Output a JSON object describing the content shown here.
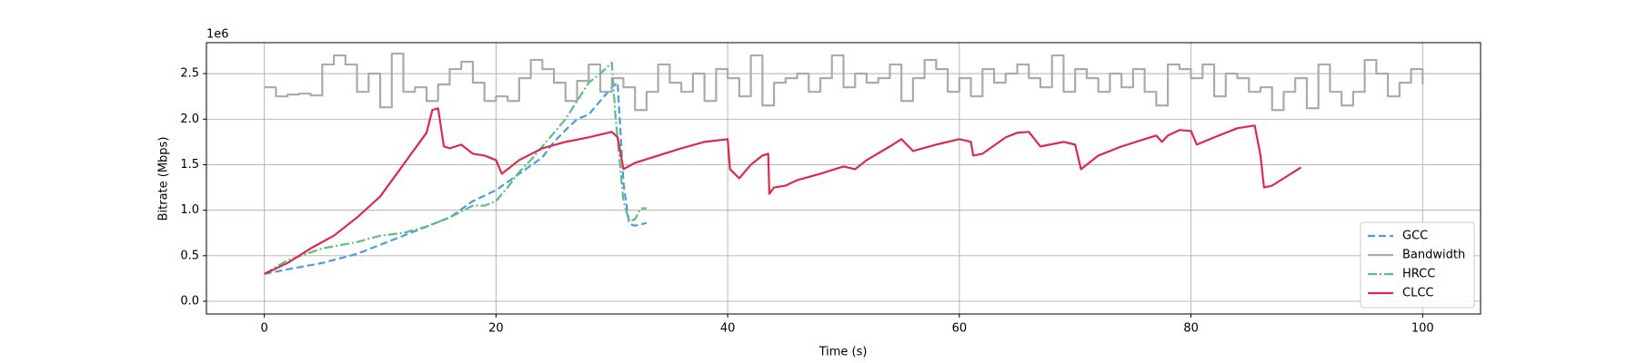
{
  "chart_data": {
    "type": "line",
    "offset_label": "1e6",
    "xlabel": "Time (s)",
    "ylabel": "Bitrate (Mbps)",
    "xlim": [
      -5,
      105
    ],
    "ylim": [
      -0.14,
      2.84
    ],
    "xticks": [
      0,
      20,
      40,
      60,
      80,
      100
    ],
    "yticks": [
      {
        "value": 0,
        "label": "0.0"
      },
      0.5,
      {
        "value": 1,
        "label": "1.0"
      },
      1.5,
      {
        "value": 2,
        "label": "2.0"
      },
      2.5
    ],
    "grid": true,
    "legend": "lower right",
    "series": [
      {
        "name": "GCC",
        "color": "#4c9be8",
        "style": "dashed",
        "x": [
          0,
          2,
          5,
          8,
          10,
          12,
          14,
          16,
          18,
          20,
          22,
          24,
          25,
          26,
          27,
          28,
          29,
          30,
          30.5,
          31,
          31.5,
          32,
          33
        ],
        "values": [
          0.3,
          0.35,
          0.42,
          0.52,
          0.62,
          0.72,
          0.82,
          0.92,
          1.1,
          1.22,
          1.4,
          1.58,
          1.75,
          1.88,
          2.0,
          2.05,
          2.2,
          2.35,
          2.4,
          1.3,
          0.85,
          0.83,
          0.86
        ]
      },
      {
        "name": "Bandwidth",
        "color": "#aaaaaa",
        "style": "step",
        "x": [
          0,
          1,
          2,
          3,
          4,
          5,
          6,
          7,
          8,
          9,
          10,
          11,
          12,
          13,
          14,
          15,
          16,
          17,
          18,
          19,
          20,
          21,
          22,
          23,
          24,
          25,
          26,
          27,
          28,
          29,
          30,
          31,
          32,
          33,
          34,
          35,
          36,
          37,
          38,
          39,
          40,
          41,
          42,
          43,
          44,
          45,
          46,
          47,
          48,
          49,
          50,
          51,
          52,
          53,
          54,
          55,
          56,
          57,
          58,
          59,
          60,
          61,
          62,
          63,
          64,
          65,
          66,
          67,
          68,
          69,
          70,
          71,
          72,
          73,
          74,
          75,
          76,
          77,
          78,
          79,
          80,
          81,
          82,
          83,
          84,
          85,
          86,
          87,
          88,
          89,
          90,
          91,
          92,
          93,
          94,
          95,
          96,
          97,
          98,
          99,
          100
        ],
        "values": [
          2.35,
          2.25,
          2.27,
          2.28,
          2.26,
          2.6,
          2.7,
          2.6,
          2.3,
          2.5,
          2.13,
          2.72,
          2.3,
          2.35,
          2.2,
          2.38,
          2.55,
          2.63,
          2.4,
          2.2,
          2.25,
          2.2,
          2.45,
          2.65,
          2.55,
          2.4,
          2.2,
          2.42,
          2.6,
          2.3,
          2.45,
          2.35,
          2.1,
          2.3,
          2.6,
          2.4,
          2.3,
          2.5,
          2.2,
          2.55,
          2.45,
          2.25,
          2.7,
          2.15,
          2.4,
          2.45,
          2.5,
          2.3,
          2.45,
          2.7,
          2.35,
          2.5,
          2.4,
          2.45,
          2.6,
          2.2,
          2.45,
          2.65,
          2.55,
          2.3,
          2.45,
          2.25,
          2.55,
          2.4,
          2.5,
          2.6,
          2.45,
          2.35,
          2.7,
          2.3,
          2.55,
          2.45,
          2.3,
          2.5,
          2.35,
          2.55,
          2.3,
          2.15,
          2.6,
          2.55,
          2.45,
          2.6,
          2.25,
          2.5,
          2.45,
          2.3,
          2.35,
          2.1,
          2.3,
          2.45,
          2.12,
          2.6,
          2.3,
          2.15,
          2.3,
          2.65,
          2.5,
          2.25,
          2.4,
          2.55,
          2.38
        ]
      },
      {
        "name": "HRCC",
        "color": "#5cbf80",
        "style": "dashdot",
        "x": [
          0,
          2,
          5,
          8,
          10,
          12,
          14,
          16,
          18,
          19,
          20,
          21,
          22,
          23,
          24,
          25,
          26,
          27,
          28,
          29,
          30,
          30.3,
          30.7,
          31,
          31.5,
          32,
          32.5,
          33
        ],
        "values": [
          0.3,
          0.45,
          0.58,
          0.65,
          0.72,
          0.75,
          0.82,
          0.92,
          1.05,
          1.05,
          1.1,
          1.25,
          1.42,
          1.55,
          1.7,
          1.85,
          2.0,
          2.2,
          2.4,
          2.5,
          2.62,
          2.05,
          1.5,
          1.1,
          0.88,
          0.9,
          1.02,
          1.02
        ]
      },
      {
        "name": "CLCC",
        "color": "#dc2a4b",
        "style": "solid",
        "x": [
          0,
          2,
          4,
          6,
          8,
          10,
          12,
          14,
          14.5,
          15,
          15.5,
          16,
          17,
          18,
          19,
          20,
          20.5,
          22,
          24,
          26,
          28,
          30,
          30.5,
          31,
          32,
          34,
          36,
          38,
          40,
          40.2,
          41,
          42,
          43,
          43.5,
          43.6,
          44,
          45,
          46,
          48,
          50,
          51,
          52,
          54,
          55,
          56,
          58,
          60,
          61,
          61.2,
          62,
          64,
          65,
          66,
          67,
          69,
          70,
          70.5,
          72,
          74,
          76,
          77,
          77.5,
          78,
          79,
          80,
          80.5,
          82,
          84,
          85,
          85.5,
          86,
          86.3,
          87,
          88,
          89.5
        ],
        "values": [
          0.3,
          0.42,
          0.58,
          0.72,
          0.92,
          1.15,
          1.5,
          1.85,
          2.1,
          2.12,
          1.7,
          1.68,
          1.72,
          1.62,
          1.6,
          1.55,
          1.4,
          1.55,
          1.68,
          1.75,
          1.8,
          1.86,
          1.8,
          1.45,
          1.52,
          1.6,
          1.68,
          1.75,
          1.78,
          1.45,
          1.35,
          1.5,
          1.6,
          1.62,
          1.18,
          1.25,
          1.27,
          1.33,
          1.4,
          1.48,
          1.45,
          1.55,
          1.7,
          1.78,
          1.65,
          1.72,
          1.78,
          1.75,
          1.6,
          1.62,
          1.8,
          1.85,
          1.86,
          1.7,
          1.75,
          1.72,
          1.45,
          1.6,
          1.7,
          1.78,
          1.82,
          1.75,
          1.82,
          1.88,
          1.87,
          1.72,
          1.8,
          1.9,
          1.92,
          1.93,
          1.6,
          1.25,
          1.27,
          1.35,
          1.47
        ]
      }
    ]
  }
}
